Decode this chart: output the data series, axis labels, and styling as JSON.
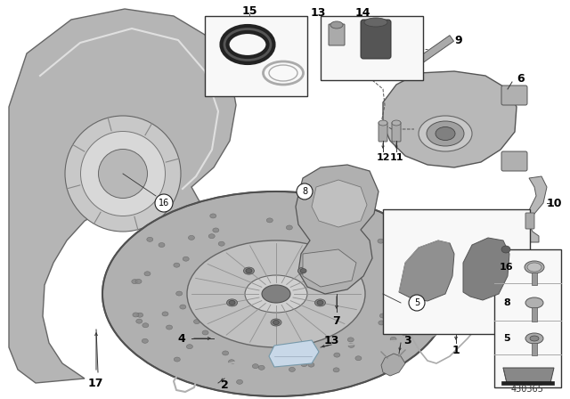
{
  "background_color": "#ffffff",
  "part_number": "430365",
  "figure_width": 6.4,
  "figure_height": 4.48,
  "dpi": 100,
  "shield_color": "#c0c0c0",
  "disc_color": "#b0b0b0",
  "caliper_color": "#b8b8b8",
  "bracket_color": "#aaaaaa",
  "line_color": "#333333",
  "label_color": "#000000",
  "box_color": "#f8f8f8"
}
